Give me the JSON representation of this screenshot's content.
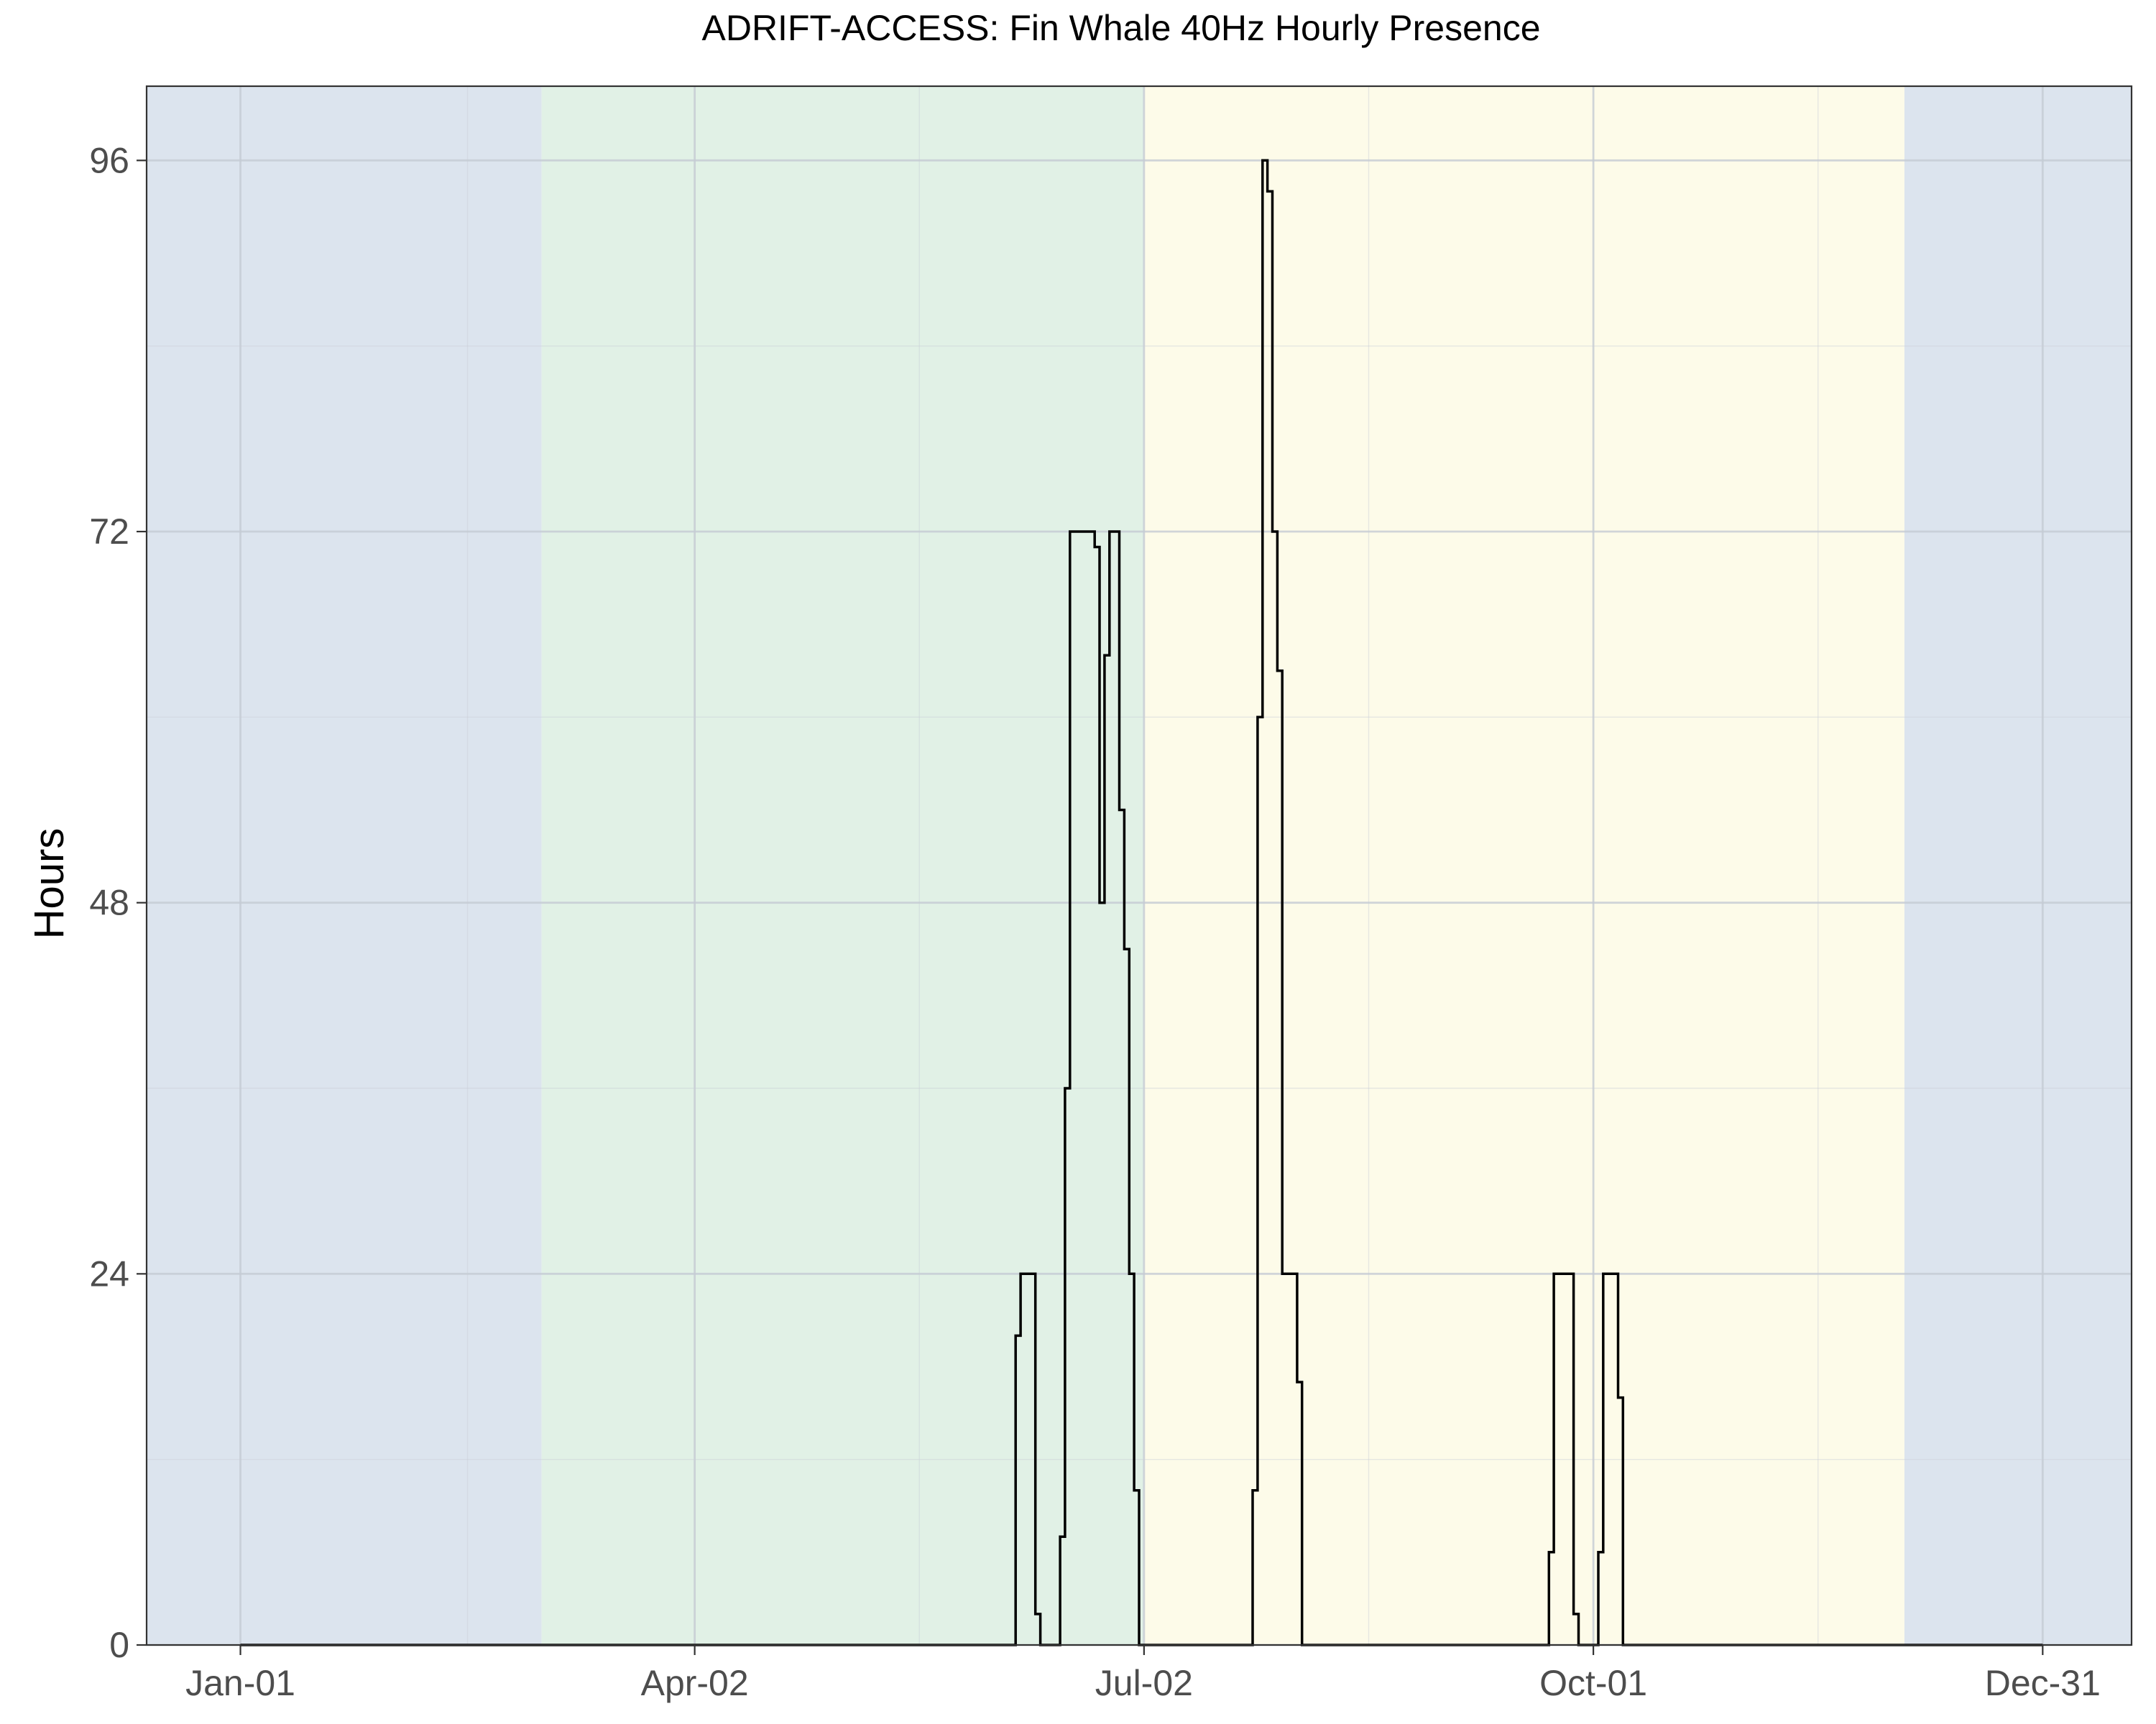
{
  "chart_data": {
    "type": "line",
    "step": true,
    "title": "ADRIFT-ACCESS: Fin Whale 40Hz Hourly Presence",
    "xlabel": "",
    "ylabel": "Hours",
    "x_tick_labels": [
      "Jan-01",
      "Apr-02",
      "Jul-02",
      "Oct-01",
      "Dec-31"
    ],
    "x_tick_dates": [
      "2000-01-01",
      "2000-04-02",
      "2000-07-02",
      "2000-10-01",
      "2000-12-31"
    ],
    "xlim": [
      "1999-12-13",
      "2001-01-18"
    ],
    "y_ticks": [
      0,
      24,
      48,
      72,
      96
    ],
    "ylim": [
      0,
      100.8
    ],
    "grid": true,
    "season_bands": [
      {
        "start": "1999-12-13",
        "end": "2000-03-02",
        "color": "#dce4ee"
      },
      {
        "start": "2000-03-02",
        "end": "2000-07-02",
        "color": "#e1f1e6"
      },
      {
        "start": "2000-07-02",
        "end": "2000-12-03",
        "color": "#fdfbe9"
      },
      {
        "start": "2000-12-03",
        "end": "2001-01-18",
        "color": "#dce4ee"
      }
    ],
    "line_color": "#000000",
    "series": [
      {
        "values": [
          {
            "x": "2000-01-01",
            "y": 0
          },
          {
            "x": "2000-06-06",
            "y": 20
          },
          {
            "x": "2000-06-07",
            "y": 24
          },
          {
            "x": "2000-06-10",
            "y": 2
          },
          {
            "x": "2000-06-11",
            "y": 0
          },
          {
            "x": "2000-06-12",
            "y": 0
          },
          {
            "x": "2000-06-15",
            "y": 7
          },
          {
            "x": "2000-06-16",
            "y": 36
          },
          {
            "x": "2000-06-17",
            "y": 72
          },
          {
            "x": "2000-06-22",
            "y": 71
          },
          {
            "x": "2000-06-23",
            "y": 48
          },
          {
            "x": "2000-06-24",
            "y": 64
          },
          {
            "x": "2000-06-25",
            "y": 72
          },
          {
            "x": "2000-06-27",
            "y": 54
          },
          {
            "x": "2000-06-28",
            "y": 45
          },
          {
            "x": "2000-06-29",
            "y": 24
          },
          {
            "x": "2000-06-30",
            "y": 10
          },
          {
            "x": "2000-07-01",
            "y": 0
          },
          {
            "x": "2000-07-24",
            "y": 10
          },
          {
            "x": "2000-07-25",
            "y": 60
          },
          {
            "x": "2000-07-26",
            "y": 96
          },
          {
            "x": "2000-07-27",
            "y": 94
          },
          {
            "x": "2000-07-28",
            "y": 72
          },
          {
            "x": "2000-07-29",
            "y": 63
          },
          {
            "x": "2000-07-30",
            "y": 24
          },
          {
            "x": "2000-08-02",
            "y": 17
          },
          {
            "x": "2000-08-03",
            "y": 0
          },
          {
            "x": "2000-09-22",
            "y": 6
          },
          {
            "x": "2000-09-23",
            "y": 24
          },
          {
            "x": "2000-09-27",
            "y": 2
          },
          {
            "x": "2000-09-28",
            "y": 0
          },
          {
            "x": "2000-10-02",
            "y": 6
          },
          {
            "x": "2000-10-03",
            "y": 24
          },
          {
            "x": "2000-10-06",
            "y": 16
          },
          {
            "x": "2000-10-07",
            "y": 0
          },
          {
            "x": "2000-12-31",
            "y": 0
          }
        ]
      }
    ]
  }
}
